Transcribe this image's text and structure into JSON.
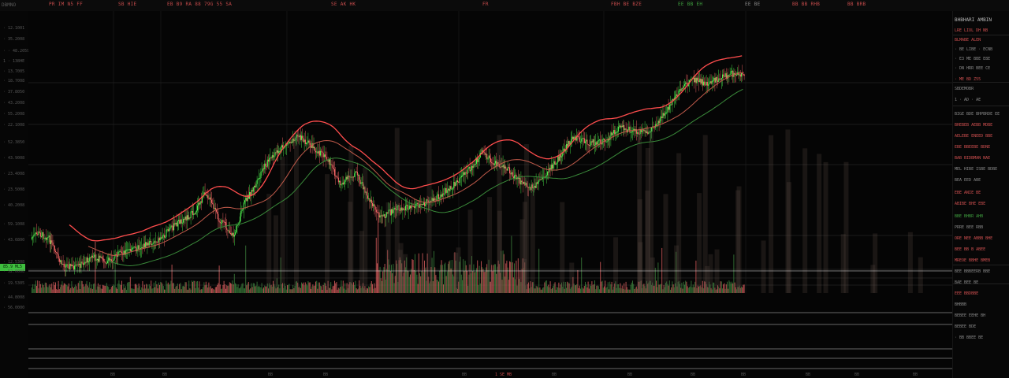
{
  "topbar": {
    "corner": "DBMNO",
    "items": [
      {
        "text": "PR  IM  N5  FF",
        "color": "#c44b4b"
      },
      {
        "text": "SB  HIE",
        "color": "#c44b4b"
      },
      {
        "text": "EB  B9  RA  88  79G  55  SA",
        "color": "#c44b4b"
      },
      {
        "text": "SE  AK  HK",
        "color": "#c44b4b"
      },
      {
        "text": "FR",
        "color": "#c44b4b"
      },
      {
        "text": "FBH  BE  BZE",
        "color": "#c44b4b"
      },
      {
        "text": "EE  BB  EH",
        "color": "#3fa03f"
      },
      {
        "text": "EE  BE",
        "color": "#8a8a8a"
      },
      {
        "text": "BB  BB  RHB",
        "color": "#c44b4b"
      },
      {
        "text": "BB  BRB",
        "color": "#c44b4b"
      }
    ]
  },
  "axis_left": {
    "labels": [
      "· 12.1001",
      "· 35.2008",
      "· · 48.2059",
      "1 · 138HE",
      "· 13.7005",
      "· 18.7008",
      "· 37.8050",
      "· 43.2008",
      "· 55.2008",
      "· 22.1008",
      "· 52.3850",
      "· 43.9008",
      "· 23.4008",
      "· 23.5008",
      "· 40.2008",
      "· 59.1008",
      "· 43.6800",
      "· 12.5308",
      "· 52.0008",
      "· 19.5305",
      "· 44.8008",
      "· 56.0000"
    ],
    "price_tag": "85.9 ML5"
  },
  "sidebar": {
    "header": "BHBHARI AMBIN",
    "lines": [
      {
        "t": "LRE LIOL   DH NB",
        "c": "#d05050"
      },
      {
        "t": "BLMABE ALEN",
        "c": "#d05050"
      },
      {
        "t": "· BE  LIBE  ·  ECNB",
        "c": "#8a8a8a"
      },
      {
        "t": "· E3  ME  BBE  E8E",
        "c": "#8a8a8a"
      },
      {
        "t": "· DN  HRR  BEE  CE",
        "c": "#8a8a8a"
      },
      {
        "t": "· ME  BD  Z55",
        "c": "#d05050"
      },
      {
        "t": "SBDEMOBR",
        "c": "#8a8a8a"
      },
      {
        "t": "1 · AD · AE",
        "c": "#8a8a8a"
      },
      {
        "t": "BIGE BDE BHPBRDE  EE",
        "c": "#8a8a8a"
      },
      {
        "t": "BHEBEB  AEBB  MDBE",
        "c": "#d05050"
      },
      {
        "t": "AELEBE ENEED BBE",
        "c": "#d05050"
      },
      {
        "t": "EBE BBEEBE  BDNE",
        "c": "#d05050"
      },
      {
        "t": "BAB  BIDBMAN  NAE",
        "c": "#d05050"
      },
      {
        "t": "MEL HIBE ISBE BDBE",
        "c": "#8a8a8a"
      },
      {
        "t": "BEA  EED  ABE",
        "c": "#8a8a8a"
      },
      {
        "t": "EBE  ANIE  BE",
        "c": "#d05050"
      },
      {
        "t": "ABIBE BHE EBE",
        "c": "#d05050"
      },
      {
        "t": "BBE  BHBR  AHB",
        "c": "#3fa03f"
      },
      {
        "t": "PRRE  BEE  RBB",
        "c": "#8a8a8a"
      },
      {
        "t": "ORE  NEE  ABBB  BHE",
        "c": "#d05050"
      },
      {
        "t": "BEE BB  B  ABEE",
        "c": "#d05050"
      },
      {
        "t": "MREOE BBHE  BMEB",
        "c": "#d05050"
      },
      {
        "t": "BEE  BBBEERB  BBE",
        "c": "#8a8a8a"
      },
      {
        "t": "BAE  BEE  BE",
        "c": "#8a8a8a"
      },
      {
        "t": "EEE  BBDBBE",
        "c": "#d05050"
      },
      {
        "t": "BHBBB",
        "c": "#8a8a8a"
      },
      {
        "t": "BEBEE  EEHE  BH",
        "c": "#8a8a8a"
      },
      {
        "t": "BEBEE  BDE",
        "c": "#8a8a8a"
      },
      {
        "t": "· BB  BBEE  BE",
        "c": "#8a8a8a"
      }
    ]
  },
  "xaxis": {
    "labels": [
      "BB",
      "BB",
      "BB",
      "BB",
      "BB",
      "BB",
      "BB",
      "BB",
      "BB",
      "BB",
      "BB",
      "BB"
    ],
    "marker": "1 SE MB"
  },
  "colors": {
    "bull": "#4ef04e",
    "bear": "#ff6a6a",
    "ma1": "#ff4d4d",
    "ma2": "#c05a4a",
    "ma3": "#3a8a3a"
  },
  "chart_data": {
    "type": "candlestick",
    "anchors": [
      [
        0,
        290
      ],
      [
        12,
        282
      ],
      [
        25,
        288
      ],
      [
        40,
        320
      ],
      [
        60,
        326
      ],
      [
        80,
        312
      ],
      [
        100,
        318
      ],
      [
        120,
        306
      ],
      [
        140,
        300
      ],
      [
        165,
        290
      ],
      [
        190,
        268
      ],
      [
        210,
        256
      ],
      [
        225,
        230
      ],
      [
        240,
        262
      ],
      [
        260,
        286
      ],
      [
        275,
        240
      ],
      [
        290,
        218
      ],
      [
        300,
        195
      ],
      [
        320,
        175
      ],
      [
        340,
        158
      ],
      [
        360,
        172
      ],
      [
        380,
        190
      ],
      [
        395,
        220
      ],
      [
        415,
        205
      ],
      [
        430,
        235
      ],
      [
        445,
        262
      ],
      [
        470,
        250
      ],
      [
        500,
        245
      ],
      [
        520,
        235
      ],
      [
        540,
        220
      ],
      [
        560,
        200
      ],
      [
        575,
        180
      ],
      [
        590,
        192
      ],
      [
        605,
        198
      ],
      [
        620,
        215
      ],
      [
        640,
        225
      ],
      [
        655,
        208
      ],
      [
        670,
        190
      ],
      [
        690,
        160
      ],
      [
        710,
        168
      ],
      [
        730,
        165
      ],
      [
        750,
        148
      ],
      [
        770,
        152
      ],
      [
        785,
        155
      ],
      [
        800,
        138
      ],
      [
        815,
        118
      ],
      [
        830,
        95
      ],
      [
        845,
        88
      ],
      [
        860,
        92
      ],
      [
        870,
        88
      ],
      [
        890,
        80
      ],
      [
        905,
        80
      ]
    ]
  }
}
